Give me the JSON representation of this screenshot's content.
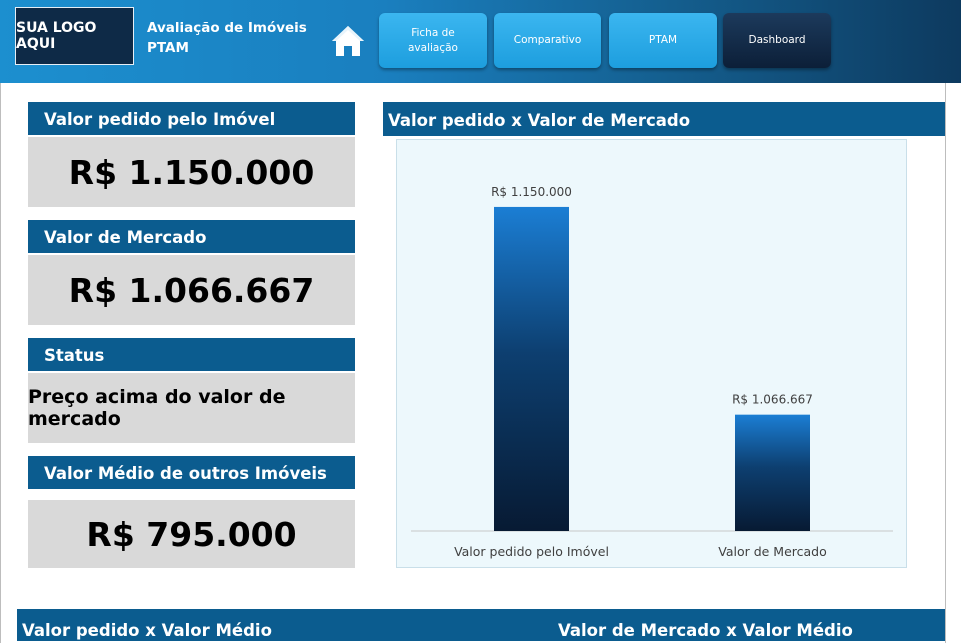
{
  "header": {
    "logo_text": "SUA LOGO AQUI",
    "title_line1": "Avaliação de Imóveis",
    "title_line2": "PTAM",
    "nav": [
      {
        "label": "Ficha de\navaliação"
      },
      {
        "label": "Comparativo"
      },
      {
        "label": "PTAM"
      },
      {
        "label": "Dashboard"
      }
    ],
    "colors": {
      "brand": "#0b5c8f",
      "logo_bg": "#0e2a47",
      "button": "#29a9e8",
      "button_active": "#0c1f38"
    }
  },
  "cards": [
    {
      "title": "Valor pedido pelo Imóvel",
      "value": "R$ 1.150.000"
    },
    {
      "title": "Valor de Mercado",
      "value": "R$ 1.066.667"
    },
    {
      "title": "Status",
      "value": "Preço acima do valor de mercado"
    },
    {
      "title": "Valor Médio de outros Imóveis",
      "value": "R$ 795.000"
    }
  ],
  "chart_title": "Valor pedido x Valor de Mercado",
  "chart_data": {
    "type": "bar",
    "title": "Valor pedido x Valor de Mercado",
    "categories": [
      "Valor pedido pelo Imóvel",
      "Valor de Mercado"
    ],
    "values": [
      1150000,
      1066667
    ],
    "data_labels": [
      "R$ 1.150.000",
      "R$ 1.066.667"
    ],
    "ylim": [
      1020000,
      1160000
    ],
    "xlabel": "",
    "ylabel": "",
    "grid": false,
    "legend": "none"
  },
  "bottom": {
    "left_title": "Valor pedido x Valor Médio",
    "right_title": "Valor de Mercado x Valor Médio"
  }
}
